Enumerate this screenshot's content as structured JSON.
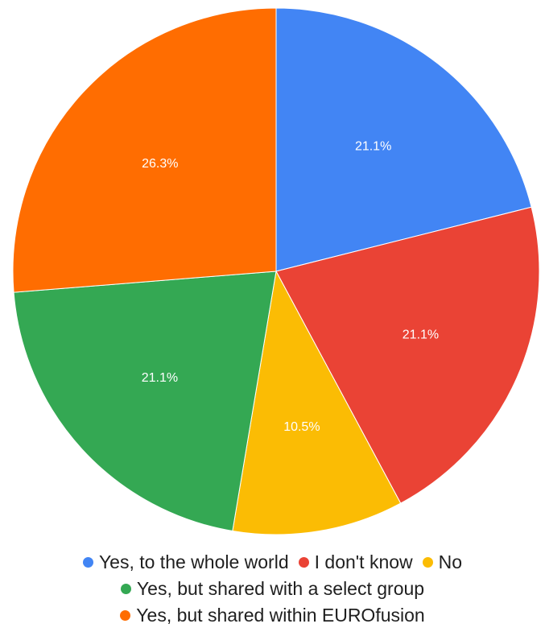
{
  "chart_data": {
    "type": "pie",
    "title": "",
    "slices": [
      {
        "label": "Yes, to the whole world",
        "value": 21.1,
        "display": "21.1%",
        "color": "#4285f4"
      },
      {
        "label": "I don't know",
        "value": 21.1,
        "display": "21.1%",
        "color": "#ea4335"
      },
      {
        "label": "No",
        "value": 10.5,
        "display": "10.5%",
        "color": "#fbbc04"
      },
      {
        "label": "Yes, but shared with a select group",
        "value": 21.1,
        "display": "21.1%",
        "color": "#34a853"
      },
      {
        "label": "Yes, but shared within EUROfusion",
        "value": 26.3,
        "display": "26.3%",
        "color": "#ff6d01"
      }
    ],
    "start_angle": "12 o'clock",
    "direction": "clockwise",
    "legend_position": "bottom"
  }
}
